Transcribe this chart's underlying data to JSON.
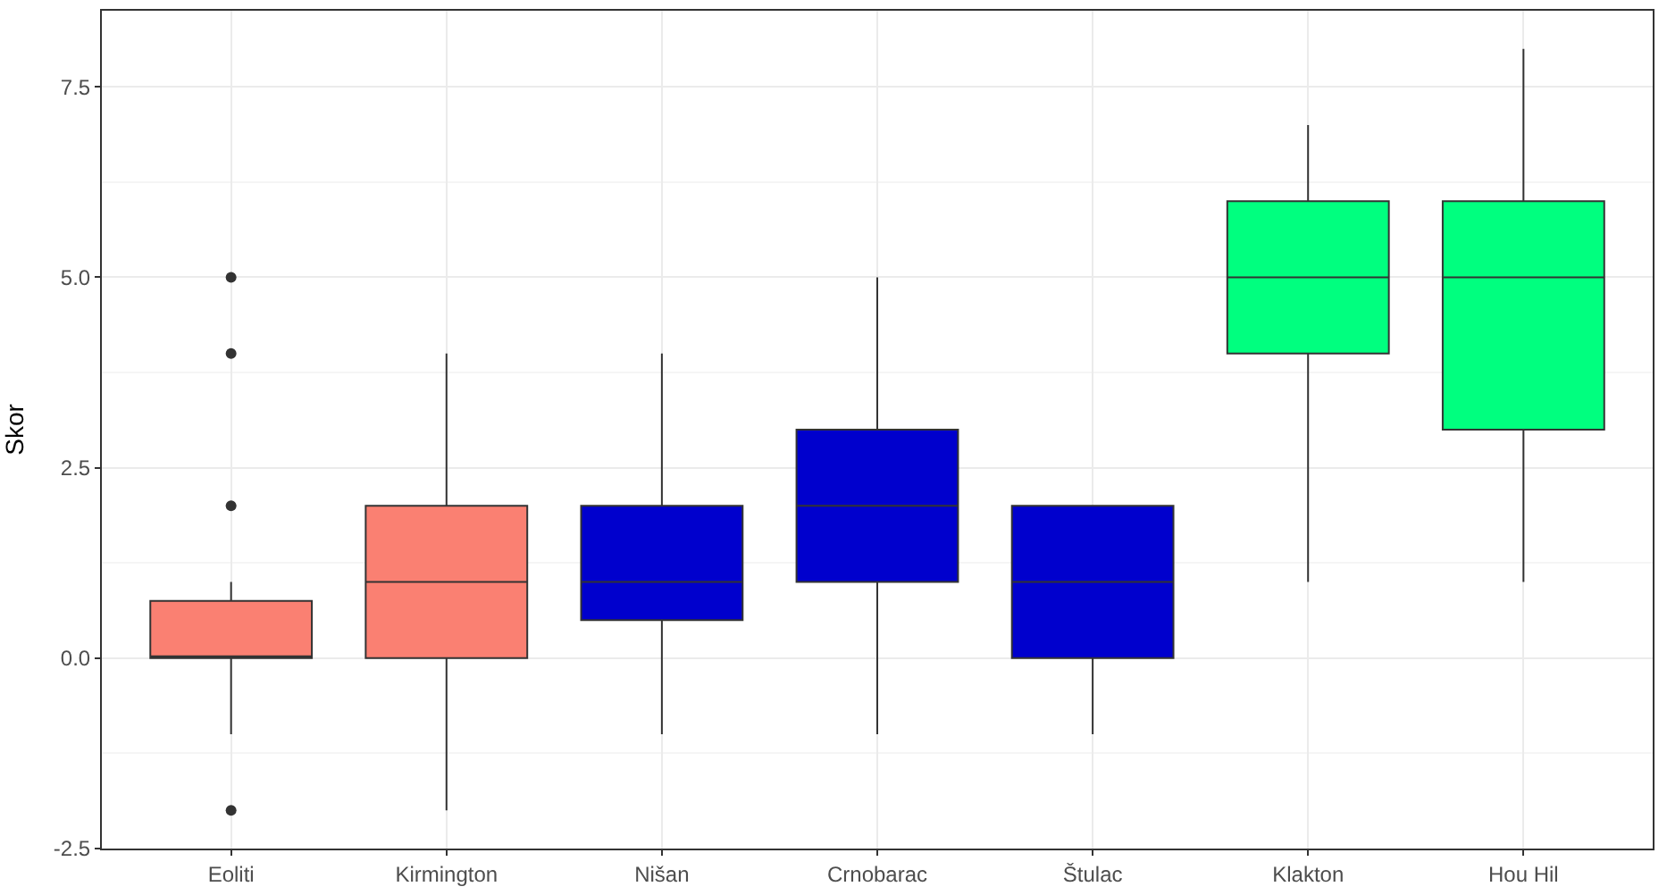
{
  "chart_data": {
    "type": "box",
    "ylabel": "Skor",
    "categories": [
      "Eoliti",
      "Kirmington",
      "Nišan",
      "Crnobarac",
      "Štulac",
      "Klakton",
      "Hou Hil"
    ],
    "colors": [
      "#fa8072",
      "#fa8072",
      "#0000cd",
      "#0000cd",
      "#0000cd",
      "#00ff7f",
      "#00ff7f"
    ],
    "boxes": [
      {
        "low": -1,
        "q1": 0,
        "median": 0,
        "q3": 0.75,
        "high": 1,
        "outliers": [
          5,
          4,
          2,
          -2
        ]
      },
      {
        "low": -2,
        "q1": 0,
        "median": 1,
        "q3": 2,
        "high": 4
      },
      {
        "low": -1,
        "q1": 0.5,
        "median": 1,
        "q3": 2,
        "high": 4
      },
      {
        "low": -1,
        "q1": 1,
        "median": 2,
        "q3": 3,
        "high": 5
      },
      {
        "low": -1,
        "q1": 0,
        "median": 1,
        "q3": 2,
        "high": 2
      },
      {
        "low": 1,
        "q1": 4,
        "median": 5,
        "q3": 6,
        "high": 7
      },
      {
        "low": 1,
        "q1": 3,
        "median": 5,
        "q3": 6,
        "high": 8
      }
    ],
    "ylim": [
      -2.5,
      8.5
    ],
    "yticks": [
      {
        "value": -2.5,
        "label": "-2.5"
      },
      {
        "value": 0,
        "label": "0.0"
      },
      {
        "value": 2.5,
        "label": "2.5"
      },
      {
        "value": 5,
        "label": "5.0"
      },
      {
        "value": 7.5,
        "label": "7.5"
      }
    ],
    "grid": true
  }
}
